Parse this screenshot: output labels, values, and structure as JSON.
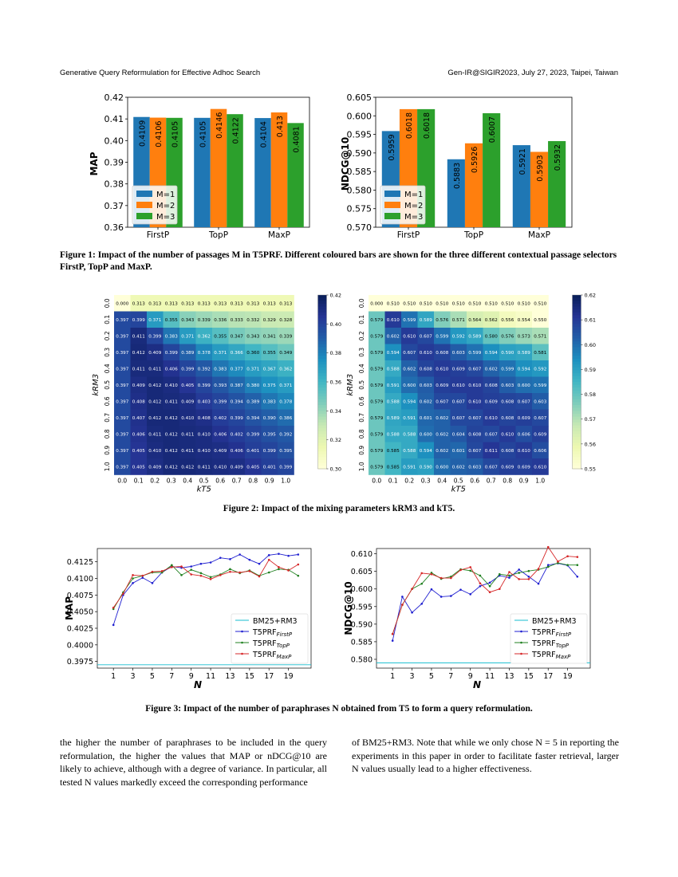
{
  "header": {
    "left": "Generative Query Reformulation for Effective Adhoc Search",
    "right": "Gen-IR@SIGIR2023, July 27, 2023, Taipei, Taiwan"
  },
  "figure1": {
    "caption_label": "Figure 1:",
    "caption_text": "Impact of the number of passages M in T5PRF. Different coloured bars are shown for the three different contextual passage selectors FirstP, TopP and MaxP."
  },
  "figure2": {
    "caption_label": "Figure 2:",
    "caption_text": "Impact of the mixing parameters kRM3 and kT5."
  },
  "figure3": {
    "caption_label": "Figure 3:",
    "caption_text": "Impact of the number of paraphrases N obtained from T5 to form a query reformulation."
  },
  "body": {
    "col1": "the higher the number of paraphrases to be included in the query reformulation, the higher the values that MAP or nDCG@10 are likely to achieve, although with a degree of variance. In particular, all tested N values markedly exceed the corresponding performance",
    "col2": "of BM25+RM3. Note that while we only chose N = 5 in reporting the experiments in this paper in order to facilitate faster retrieval, larger N values usually lead to a higher effectiveness."
  },
  "colors": {
    "blue": "#1f77b4",
    "orange": "#ff7f0e",
    "green": "#2ca02c",
    "red": "#d62728",
    "cyan": "#17becf"
  },
  "chart_data": [
    {
      "type": "bar",
      "ylabel": "MAP",
      "categories": [
        "FirstP",
        "TopP",
        "MaxP"
      ],
      "series": [
        {
          "name": "M=1",
          "values": [
            0.4109,
            0.4105,
            0.4104
          ]
        },
        {
          "name": "M=2",
          "values": [
            0.4106,
            0.4146,
            0.413
          ]
        },
        {
          "name": "M=3",
          "values": [
            0.4105,
            0.4122,
            0.4081
          ]
        }
      ],
      "labels": [
        [
          "0.4109",
          "0.4105",
          "0.4104"
        ],
        [
          "0.4106",
          "0.4146",
          "0.413"
        ],
        [
          "0.4105",
          "0.4122",
          "0.4081"
        ]
      ],
      "ylim": [
        0.36,
        0.42
      ],
      "yticks": [
        "0.36",
        "0.37",
        "0.38",
        "0.39",
        "0.40",
        "0.41",
        "0.42"
      ],
      "legend": "bottom-left"
    },
    {
      "type": "bar",
      "ylabel": "NDCG@10",
      "categories": [
        "FirstP",
        "TopP",
        "MaxP"
      ],
      "series": [
        {
          "name": "M=1",
          "values": [
            0.5959,
            0.5883,
            0.5921
          ]
        },
        {
          "name": "M=2",
          "values": [
            0.6018,
            0.5926,
            0.5903
          ]
        },
        {
          "name": "M=3",
          "values": [
            0.6018,
            0.6007,
            0.5932
          ]
        }
      ],
      "labels": [
        [
          "0.5959",
          "0.5883",
          "0.5921"
        ],
        [
          "0.6018",
          "0.5926",
          "0.5903"
        ],
        [
          "0.6018",
          "0.6007",
          "0.5932"
        ]
      ],
      "ylim": [
        0.57,
        0.605
      ],
      "yticks": [
        "0.570",
        "0.575",
        "0.580",
        "0.585",
        "0.590",
        "0.595",
        "0.600",
        "0.605"
      ],
      "legend": "bottom-left"
    },
    {
      "type": "heatmap",
      "xlabel": "kT5",
      "ylabel": "kRM3",
      "ticks": [
        "0.0",
        "0.1",
        "0.2",
        "0.3",
        "0.4",
        "0.5",
        "0.6",
        "0.7",
        "0.8",
        "0.9",
        "1.0"
      ],
      "vmin": 0.3,
      "vmax": 0.42,
      "colorbar_ticks": [
        "0.30",
        "0.32",
        "0.34",
        "0.36",
        "0.38",
        "0.40",
        "0.42"
      ],
      "rows": [
        [
          "0.000",
          "0.313",
          "0.313",
          "0.313",
          "0.313",
          "0.313",
          "0.313",
          "0.313",
          "0.313",
          "0.313",
          "0.313"
        ],
        [
          "0.397",
          "0.399",
          "0.371",
          "0.355",
          "0.343",
          "0.339",
          "0.336",
          "0.333",
          "0.332",
          "0.329",
          "0.328"
        ],
        [
          "0.397",
          "0.411",
          "0.399",
          "0.383",
          "0.371",
          "0.362",
          "0.355",
          "0.347",
          "0.343",
          "0.341",
          "0.339"
        ],
        [
          "0.397",
          "0.412",
          "0.409",
          "0.399",
          "0.389",
          "0.378",
          "0.371",
          "0.366",
          "0.360",
          "0.355",
          "0.349"
        ],
        [
          "0.397",
          "0.411",
          "0.411",
          "0.406",
          "0.399",
          "0.392",
          "0.383",
          "0.377",
          "0.371",
          "0.367",
          "0.362"
        ],
        [
          "0.397",
          "0.409",
          "0.412",
          "0.410",
          "0.405",
          "0.399",
          "0.393",
          "0.387",
          "0.380",
          "0.375",
          "0.371"
        ],
        [
          "0.397",
          "0.408",
          "0.412",
          "0.411",
          "0.409",
          "0.403",
          "0.399",
          "0.394",
          "0.389",
          "0.383",
          "0.378"
        ],
        [
          "0.397",
          "0.407",
          "0.412",
          "0.412",
          "0.410",
          "0.408",
          "0.402",
          "0.399",
          "0.394",
          "0.390",
          "0.386"
        ],
        [
          "0.397",
          "0.406",
          "0.411",
          "0.412",
          "0.411",
          "0.410",
          "0.406",
          "0.402",
          "0.399",
          "0.395",
          "0.392"
        ],
        [
          "0.397",
          "0.405",
          "0.410",
          "0.412",
          "0.411",
          "0.410",
          "0.409",
          "0.406",
          "0.401",
          "0.399",
          "0.395"
        ],
        [
          "0.397",
          "0.405",
          "0.409",
          "0.412",
          "0.412",
          "0.411",
          "0.410",
          "0.409",
          "0.405",
          "0.401",
          "0.399"
        ]
      ]
    },
    {
      "type": "heatmap",
      "xlabel": "kT5",
      "ylabel": "kRM3",
      "ticks": [
        "0.0",
        "0.1",
        "0.2",
        "0.3",
        "0.4",
        "0.5",
        "0.6",
        "0.7",
        "0.8",
        "0.9",
        "1.0"
      ],
      "vmin": 0.55,
      "vmax": 0.62,
      "colorbar_ticks": [
        "0.55",
        "0.56",
        "0.57",
        "0.58",
        "0.59",
        "0.60",
        "0.61",
        "0.62"
      ],
      "rows": [
        [
          "0.000",
          "0.510",
          "0.510",
          "0.510",
          "0.510",
          "0.510",
          "0.510",
          "0.510",
          "0.510",
          "0.510",
          "0.510"
        ],
        [
          "0.579",
          "0.610",
          "0.599",
          "0.589",
          "0.576",
          "0.571",
          "0.564",
          "0.562",
          "0.556",
          "0.554",
          "0.550"
        ],
        [
          "0.579",
          "0.602",
          "0.610",
          "0.607",
          "0.599",
          "0.592",
          "0.589",
          "0.580",
          "0.576",
          "0.573",
          "0.571"
        ],
        [
          "0.579",
          "0.594",
          "0.607",
          "0.610",
          "0.608",
          "0.603",
          "0.599",
          "0.594",
          "0.590",
          "0.589",
          "0.581"
        ],
        [
          "0.579",
          "0.588",
          "0.602",
          "0.608",
          "0.610",
          "0.609",
          "0.607",
          "0.602",
          "0.599",
          "0.594",
          "0.592"
        ],
        [
          "0.579",
          "0.591",
          "0.600",
          "0.603",
          "0.609",
          "0.610",
          "0.610",
          "0.608",
          "0.603",
          "0.600",
          "0.599"
        ],
        [
          "0.579",
          "0.588",
          "0.594",
          "0.602",
          "0.607",
          "0.607",
          "0.610",
          "0.609",
          "0.608",
          "0.607",
          "0.603"
        ],
        [
          "0.579",
          "0.589",
          "0.591",
          "0.601",
          "0.602",
          "0.607",
          "0.607",
          "0.610",
          "0.608",
          "0.609",
          "0.607"
        ],
        [
          "0.579",
          "0.588",
          "0.588",
          "0.600",
          "0.602",
          "0.604",
          "0.608",
          "0.607",
          "0.610",
          "0.606",
          "0.609"
        ],
        [
          "0.579",
          "0.585",
          "0.588",
          "0.594",
          "0.602",
          "0.601",
          "0.607",
          "0.611",
          "0.608",
          "0.610",
          "0.606"
        ],
        [
          "0.579",
          "0.585",
          "0.591",
          "0.590",
          "0.600",
          "0.602",
          "0.603",
          "0.607",
          "0.609",
          "0.609",
          "0.610"
        ]
      ]
    },
    {
      "type": "line",
      "xlabel": "N",
      "ylabel": "MAP",
      "x": [
        1,
        2,
        3,
        4,
        5,
        6,
        7,
        8,
        9,
        10,
        11,
        12,
        13,
        14,
        15,
        16,
        17,
        18,
        19,
        20
      ],
      "xticks": [
        "1",
        "3",
        "5",
        "7",
        "9",
        "11",
        "13",
        "15",
        "17",
        "19"
      ],
      "ylim": [
        0.3965,
        0.4145
      ],
      "yticks": [
        "0.3975",
        "0.4000",
        "0.4025",
        "0.4050",
        "0.4075",
        "0.4100",
        "0.4125"
      ],
      "legend": "bottom-right",
      "series": [
        {
          "name": "BM25+RM3",
          "values": [
            0.397,
            0.397,
            0.397,
            0.397,
            0.397,
            0.397,
            0.397,
            0.397,
            0.397,
            0.397,
            0.397,
            0.397,
            0.397,
            0.397,
            0.397,
            0.397,
            0.397,
            0.397,
            0.397,
            0.397
          ]
        },
        {
          "name": "T5PRFFirstP",
          "values": [
            0.403,
            0.4075,
            0.4093,
            0.4101,
            0.4093,
            0.4109,
            0.4118,
            0.4116,
            0.4118,
            0.4122,
            0.4124,
            0.4131,
            0.4129,
            0.4136,
            0.4128,
            0.4122,
            0.4135,
            0.4137,
            0.4134,
            0.4136
          ]
        },
        {
          "name": "T5PRFTopP",
          "values": [
            0.4054,
            0.4079,
            0.41,
            0.4104,
            0.4109,
            0.4109,
            0.412,
            0.4105,
            0.4113,
            0.4108,
            0.4102,
            0.4106,
            0.4114,
            0.4108,
            0.4112,
            0.4104,
            0.4109,
            0.4114,
            0.4113,
            0.4104
          ]
        },
        {
          "name": "T5PRFMaxP",
          "values": [
            0.4056,
            0.4077,
            0.4105,
            0.4104,
            0.411,
            0.4111,
            0.4117,
            0.4118,
            0.4106,
            0.4104,
            0.4099,
            0.4105,
            0.411,
            0.4109,
            0.4111,
            0.4103,
            0.4128,
            0.4117,
            0.4112,
            0.4121
          ]
        }
      ]
    },
    {
      "type": "line",
      "xlabel": "N",
      "ylabel": "NDCG@10",
      "x": [
        1,
        2,
        3,
        4,
        5,
        6,
        7,
        8,
        9,
        10,
        11,
        12,
        13,
        14,
        15,
        16,
        17,
        18,
        19,
        20
      ],
      "xticks": [
        "1",
        "3",
        "5",
        "7",
        "9",
        "11",
        "13",
        "15",
        "17",
        "19"
      ],
      "ylim": [
        0.5775,
        0.6115
      ],
      "yticks": [
        "0.580",
        "0.585",
        "0.590",
        "0.595",
        "0.600",
        "0.605",
        "0.610"
      ],
      "legend": "bottom-right",
      "series": [
        {
          "name": "BM25+RM3",
          "values": [
            0.579,
            0.579,
            0.579,
            0.579,
            0.579,
            0.579,
            0.579,
            0.579,
            0.579,
            0.579,
            0.579,
            0.579,
            0.579,
            0.579,
            0.579,
            0.579,
            0.579,
            0.579,
            0.579,
            0.579
          ]
        },
        {
          "name": "T5PRFFirstP",
          "values": [
            0.5853,
            0.5978,
            0.5933,
            0.5958,
            0.5999,
            0.5978,
            0.598,
            0.5998,
            0.5985,
            0.6008,
            0.6018,
            0.6038,
            0.6032,
            0.6055,
            0.6035,
            0.6015,
            0.6068,
            0.6073,
            0.6067,
            0.6035
          ]
        },
        {
          "name": "T5PRFTopP",
          "values": [
            0.5872,
            0.5955,
            0.6,
            0.6015,
            0.6046,
            0.6029,
            0.6035,
            0.6056,
            0.6052,
            0.6038,
            0.6008,
            0.6042,
            0.6038,
            0.6046,
            0.6051,
            0.6055,
            0.6063,
            0.6074,
            0.6068,
            0.6068
          ]
        },
        {
          "name": "T5PRFMaxP",
          "values": [
            0.5872,
            0.5955,
            0.6,
            0.6045,
            0.6042,
            0.6031,
            0.6031,
            0.6054,
            0.6062,
            0.6016,
            0.5991,
            0.6,
            0.6048,
            0.6028,
            0.6028,
            0.6057,
            0.6119,
            0.6078,
            0.6093,
            0.6091
          ]
        }
      ]
    }
  ]
}
